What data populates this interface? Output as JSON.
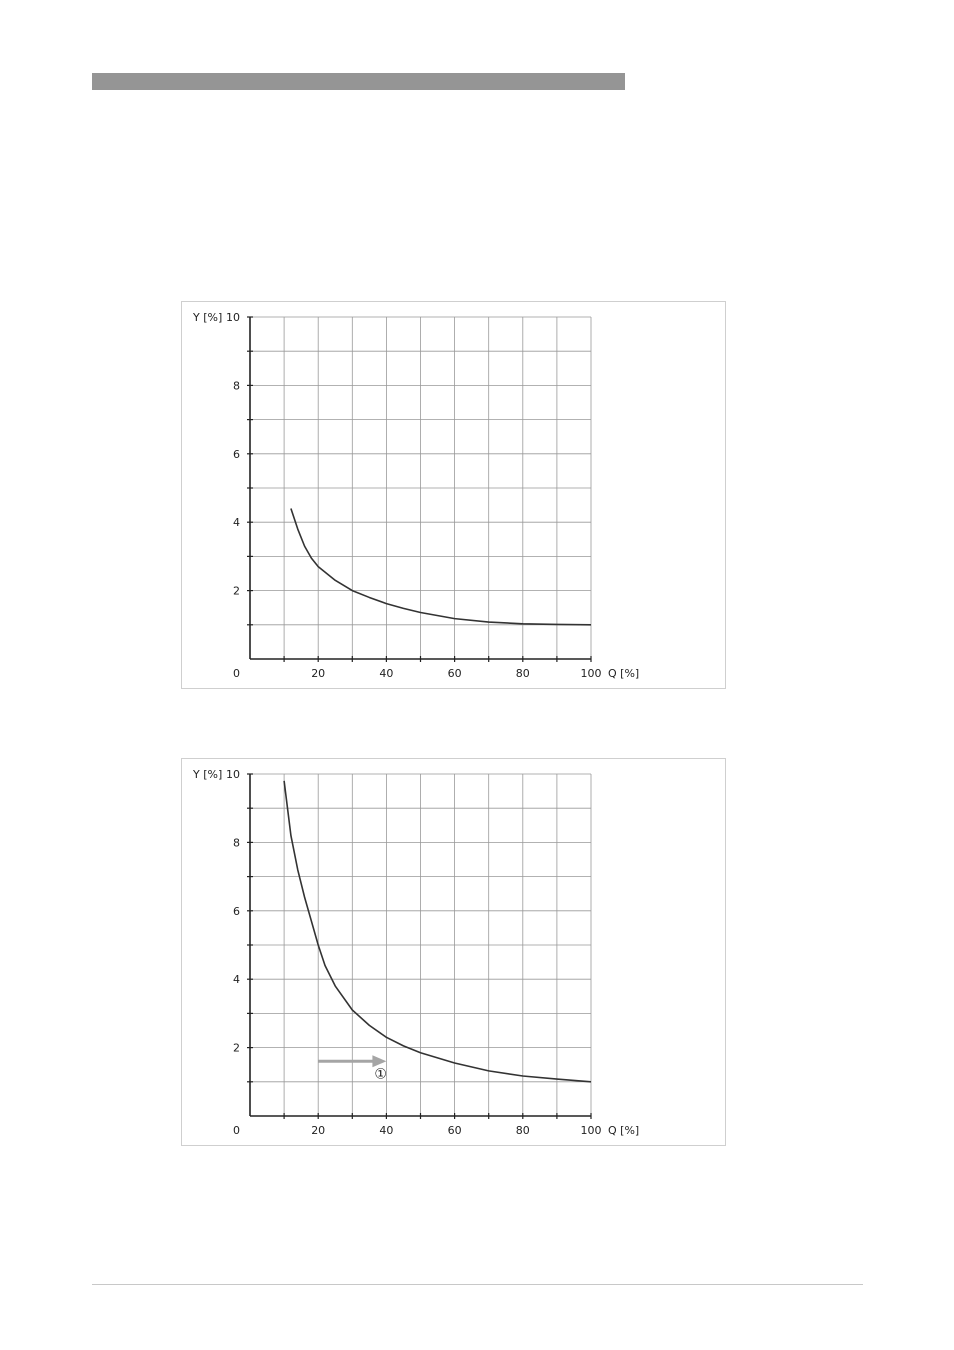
{
  "chart_data": [
    {
      "type": "line",
      "title": "",
      "xlabel": "Q [%]",
      "ylabel": "Y [%]",
      "xlim": [
        0,
        100
      ],
      "ylim": [
        0,
        10
      ],
      "grid": true,
      "origin_label": "0",
      "x_ticks": [
        20,
        40,
        60,
        80,
        100
      ],
      "y_ticks": [
        2,
        4,
        6,
        8,
        10
      ],
      "series": [
        {
          "x": [
            12,
            14,
            16,
            18,
            20,
            25,
            30,
            35,
            40,
            45,
            50,
            60,
            70,
            80,
            90,
            100
          ],
          "y": [
            4.4,
            3.8,
            3.3,
            2.95,
            2.7,
            2.3,
            2.0,
            1.8,
            1.62,
            1.48,
            1.36,
            1.18,
            1.08,
            1.03,
            1.01,
            1.0
          ]
        }
      ],
      "annotations": [],
      "line_color": "#333333",
      "grid_color": "#999999"
    },
    {
      "type": "line",
      "title": "",
      "xlabel": "Q [%]",
      "ylabel": "Y [%]",
      "xlim": [
        0,
        100
      ],
      "ylim": [
        0,
        10
      ],
      "grid": true,
      "origin_label": "0",
      "x_ticks": [
        20,
        40,
        60,
        80,
        100
      ],
      "y_ticks": [
        2,
        4,
        6,
        8,
        10
      ],
      "series": [
        {
          "x": [
            10,
            12,
            14,
            16,
            18,
            20,
            22,
            25,
            30,
            35,
            40,
            45,
            50,
            55,
            60,
            70,
            80,
            90,
            100
          ],
          "y": [
            9.8,
            8.2,
            7.2,
            6.4,
            5.7,
            5.0,
            4.4,
            3.8,
            3.1,
            2.65,
            2.3,
            2.05,
            1.85,
            1.7,
            1.55,
            1.32,
            1.17,
            1.08,
            1.0
          ]
        }
      ],
      "annotations": [
        {
          "type": "arrow",
          "from": [
            20,
            1.6
          ],
          "to": [
            40,
            1.6
          ],
          "label": "①",
          "color": "#a5a5a5"
        }
      ],
      "line_color": "#333333",
      "grid_color": "#999999"
    }
  ]
}
